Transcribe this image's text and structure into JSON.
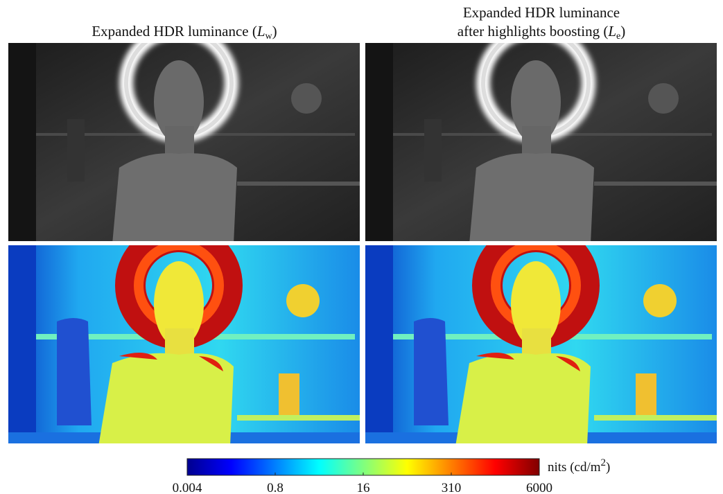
{
  "columns": [
    {
      "title": {
        "prefix": "Expanded HDR luminance (",
        "symbol": "L",
        "subscript": "w",
        "suffix": ")"
      }
    },
    {
      "title_line1": "Expanded HDR luminance",
      "title": {
        "prefix": "after highlights boosting (",
        "symbol": "L",
        "subscript": "e",
        "suffix": ")"
      }
    }
  ],
  "colorbar": {
    "ticks": [
      0.004,
      0.8,
      16,
      310,
      6000
    ],
    "label": {
      "prefix": "nits (cd/m",
      "superscript": "2",
      "suffix": ")"
    }
  }
}
